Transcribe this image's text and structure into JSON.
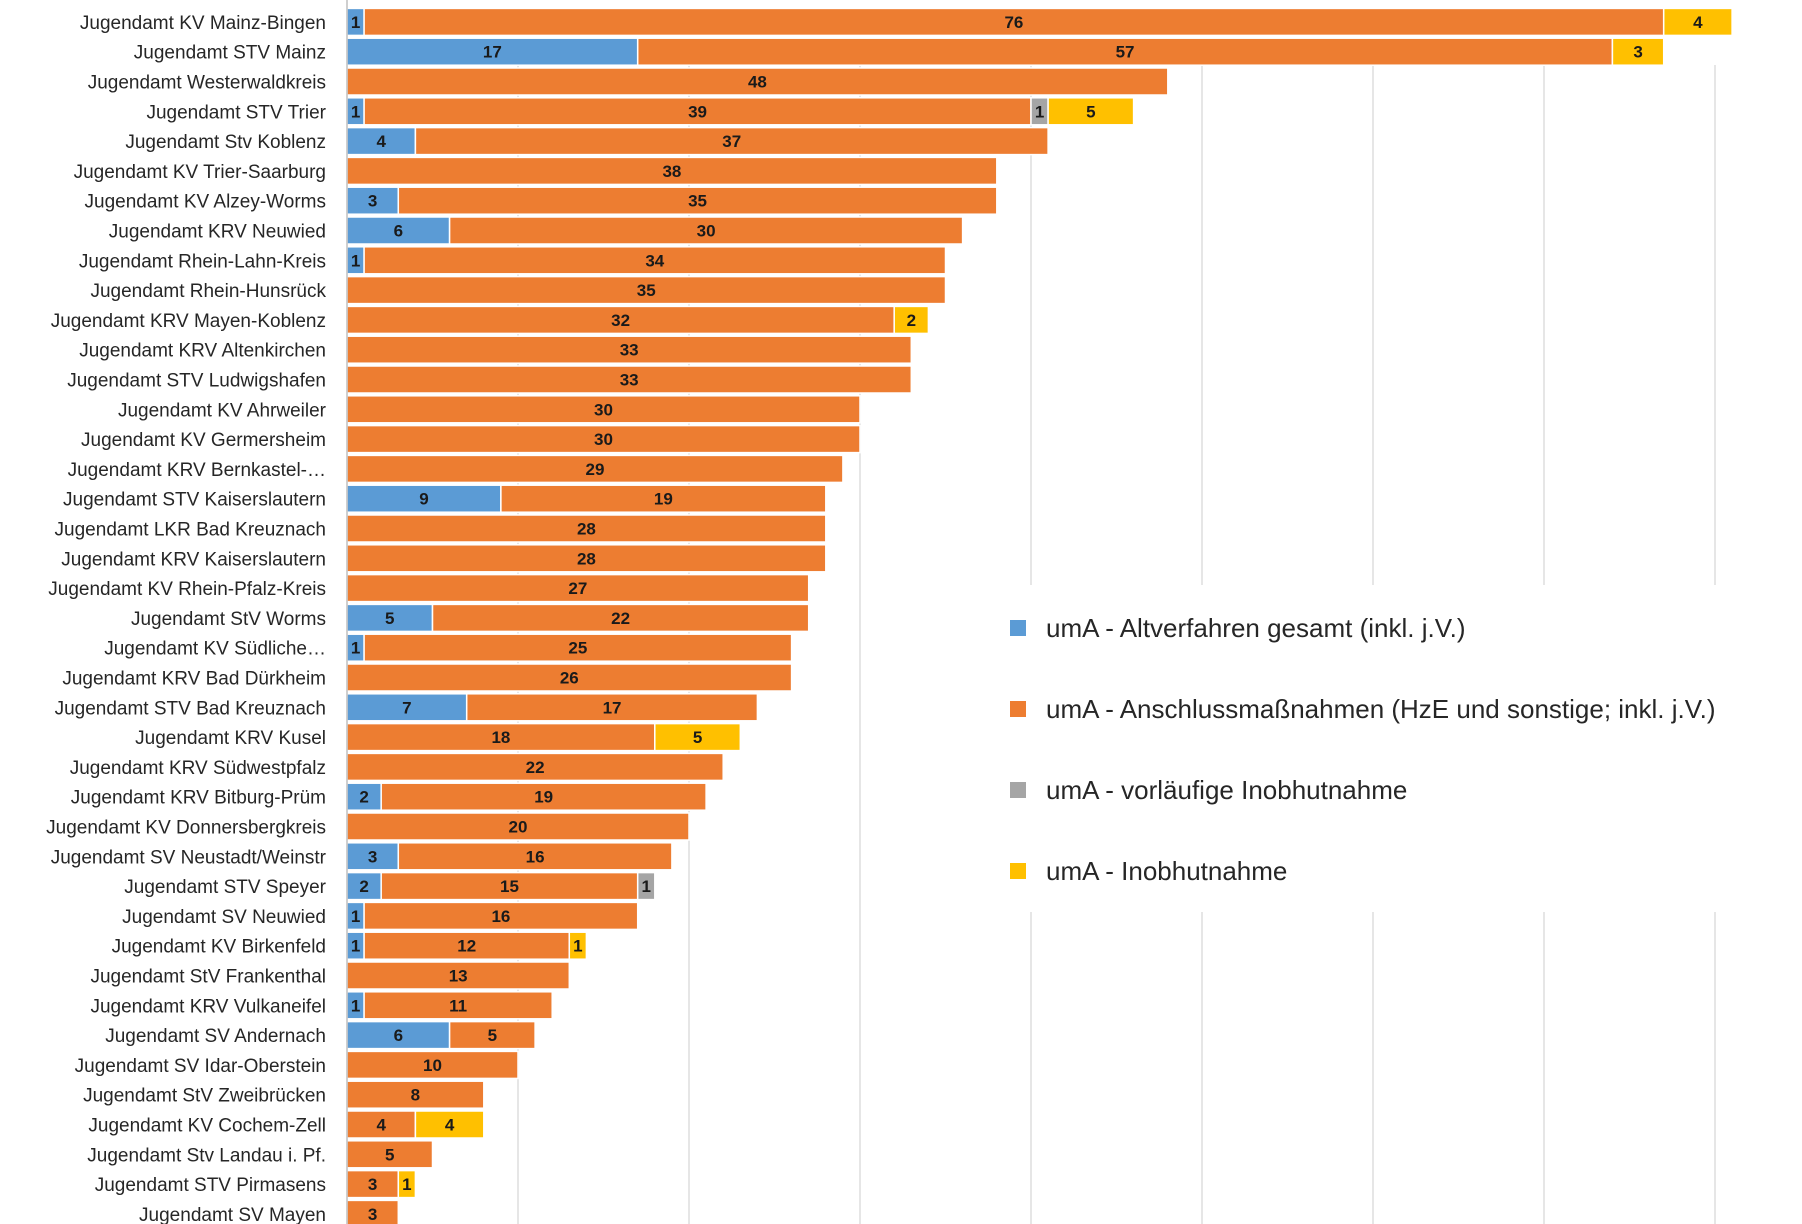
{
  "chart_data": {
    "type": "bar",
    "orientation": "horizontal",
    "stacked": true,
    "grid": true,
    "legend_position": "right",
    "categories": [
      "Jugendamt KV Mainz-Bingen",
      "Jugendamt STV Mainz",
      "Jugendamt Westerwaldkreis",
      "Jugendamt STV Trier",
      "Jugendamt Stv Koblenz",
      "Jugendamt KV Trier-Saarburg",
      "Jugendamt KV Alzey-Worms",
      "Jugendamt KRV Neuwied",
      "Jugendamt Rhein-Lahn-Kreis",
      "Jugendamt Rhein-Hunsrück",
      "Jugendamt KRV Mayen-Koblenz",
      "Jugendamt KRV Altenkirchen",
      "Jugendamt STV Ludwigshafen",
      "Jugendamt KV Ahrweiler",
      "Jugendamt KV Germersheim",
      "Jugendamt KRV Bernkastel-…",
      "Jugendamt STV Kaiserslautern",
      "Jugendamt LKR Bad Kreuznach",
      "Jugendamt KRV Kaiserslautern",
      "Jugendamt KV Rhein-Pfalz-Kreis",
      "Jugendamt StV Worms",
      "Jugendamt KV Südliche…",
      "Jugendamt KRV Bad Dürkheim",
      "Jugendamt STV Bad Kreuznach",
      "Jugendamt KRV Kusel",
      "Jugendamt KRV Südwestpfalz",
      "Jugendamt KRV Bitburg-Prüm",
      "Jugendamt KV Donnersbergkreis",
      "Jugendamt SV Neustadt/Weinstr",
      "Jugendamt STV Speyer",
      "Jugendamt SV Neuwied",
      "Jugendamt KV Birkenfeld",
      "Jugendamt StV Frankenthal",
      "Jugendamt KRV Vulkaneifel",
      "Jugendamt SV Andernach",
      "Jugendamt SV Idar-Oberstein",
      "Jugendamt StV Zweibrücken",
      "Jugendamt KV Cochem-Zell",
      "Jugendamt Stv Landau i. Pf.",
      "Jugendamt STV Pirmasens",
      "Jugendamt SV Mayen"
    ],
    "series": [
      {
        "name": "umA - Altverfahren gesamt (inkl. j.V.)",
        "color": "#5B9BD5",
        "values": [
          1,
          17,
          0,
          1,
          4,
          0,
          3,
          6,
          1,
          0,
          0,
          0,
          0,
          0,
          0,
          0,
          9,
          0,
          0,
          0,
          5,
          1,
          0,
          7,
          0,
          0,
          2,
          0,
          3,
          2,
          1,
          1,
          0,
          1,
          6,
          0,
          0,
          0,
          0,
          0,
          0
        ]
      },
      {
        "name": "umA - Anschlussmaßnahmen (HzE und sonstige; inkl. j.V.)",
        "color": "#ED7D31",
        "values": [
          76,
          57,
          48,
          39,
          37,
          38,
          35,
          30,
          34,
          35,
          32,
          33,
          33,
          30,
          30,
          29,
          19,
          28,
          28,
          27,
          22,
          25,
          26,
          17,
          18,
          22,
          19,
          20,
          16,
          15,
          16,
          12,
          13,
          11,
          5,
          10,
          8,
          4,
          5,
          3,
          3
        ]
      },
      {
        "name": "umA - vorläufige Inobhutnahme",
        "color": "#A5A5A5",
        "values": [
          0,
          0,
          0,
          1,
          0,
          0,
          0,
          0,
          0,
          0,
          0,
          0,
          0,
          0,
          0,
          0,
          0,
          0,
          0,
          0,
          0,
          0,
          0,
          0,
          0,
          0,
          0,
          0,
          0,
          1,
          0,
          0,
          0,
          0,
          0,
          0,
          0,
          0,
          0,
          0,
          0
        ]
      },
      {
        "name": "umA - Inobhutnahme",
        "color": "#FFC000",
        "values": [
          4,
          3,
          0,
          5,
          0,
          0,
          0,
          0,
          0,
          0,
          2,
          0,
          0,
          0,
          0,
          0,
          0,
          0,
          0,
          0,
          0,
          0,
          0,
          0,
          5,
          0,
          0,
          0,
          0,
          0,
          0,
          1,
          0,
          0,
          0,
          0,
          0,
          4,
          0,
          1,
          0
        ]
      }
    ],
    "xlim": [
      0,
      82
    ],
    "xlabel": "",
    "ylabel": "",
    "title": ""
  }
}
